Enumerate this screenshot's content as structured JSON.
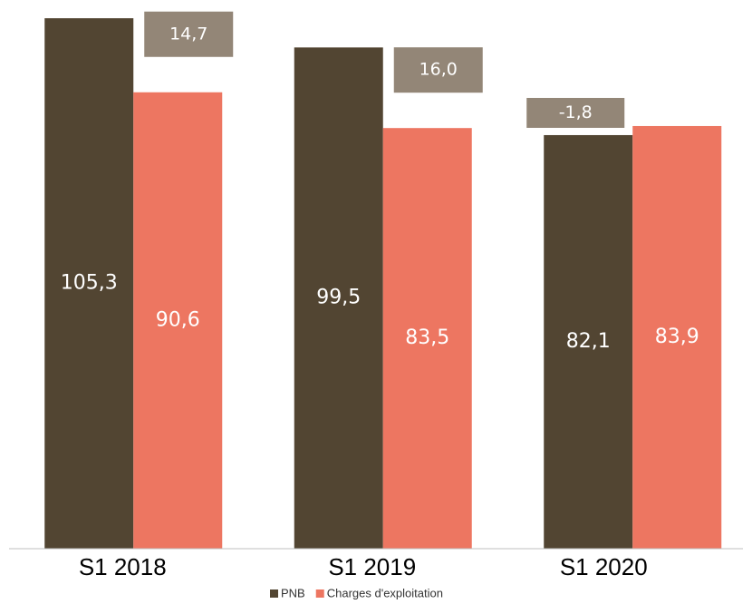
{
  "chart_data": {
    "type": "bar",
    "categories": [
      "S1 2018",
      "S1 2019",
      "S1 2020"
    ],
    "series": [
      {
        "name": "PNB",
        "color": "#524532",
        "values": [
          105.3,
          99.5,
          82.1
        ],
        "value_labels": [
          "105,3",
          "99,5",
          "82,1"
        ]
      },
      {
        "name": "Charges d'exploitation",
        "color": "#ed7661",
        "values": [
          90.6,
          83.5,
          83.9
        ],
        "value_labels": [
          "90,6",
          "83,5",
          "83,9"
        ]
      }
    ],
    "differences": {
      "color": "#938677",
      "values": [
        14.7,
        16.0,
        -1.8
      ],
      "value_labels": [
        "14,7",
        "16,0",
        "-1,8"
      ]
    },
    "ylim": [
      0,
      110
    ]
  }
}
